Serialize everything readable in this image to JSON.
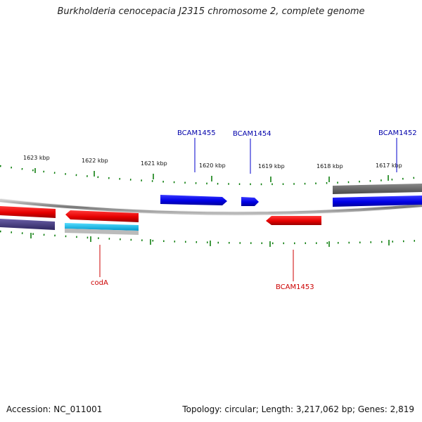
{
  "title": "Burkholderia cenocepacia J2315 chromosome 2, complete genome",
  "footer": {
    "accession": "Accession: NC_011001",
    "stats": "Topology: circular; Length: 3,217,062 bp; Genes: 2,819"
  },
  "colors": {
    "forward_gene": "#0000ee",
    "reverse_gene": "#ee0000",
    "fwd_label": "#0000aa",
    "rev_label": "#cc0000",
    "tick": "#007700",
    "backbone": "#888888",
    "grey_feature": "#666666",
    "cyan_feature": "#22bbee",
    "purple_feature": "#4a3f80"
  },
  "ticks": [
    {
      "kbp": 1623,
      "label": "1623 kbp"
    },
    {
      "kbp": 1622,
      "label": "1622 kbp"
    },
    {
      "kbp": 1621,
      "label": "1621 kbp"
    },
    {
      "kbp": 1620,
      "label": "1620 kbp"
    },
    {
      "kbp": 1619,
      "label": "1619 kbp"
    },
    {
      "kbp": 1618,
      "label": "1618 kbp"
    },
    {
      "kbp": 1617,
      "label": "1617 kbp"
    }
  ],
  "genes": [
    {
      "name": "BCAM1455",
      "strand": "+"
    },
    {
      "name": "BCAM1454",
      "strand": "+"
    },
    {
      "name": "BCAM1452",
      "strand": "+"
    },
    {
      "name": "BCAM1453",
      "strand": "-"
    },
    {
      "name": "codA",
      "strand": "-"
    }
  ]
}
